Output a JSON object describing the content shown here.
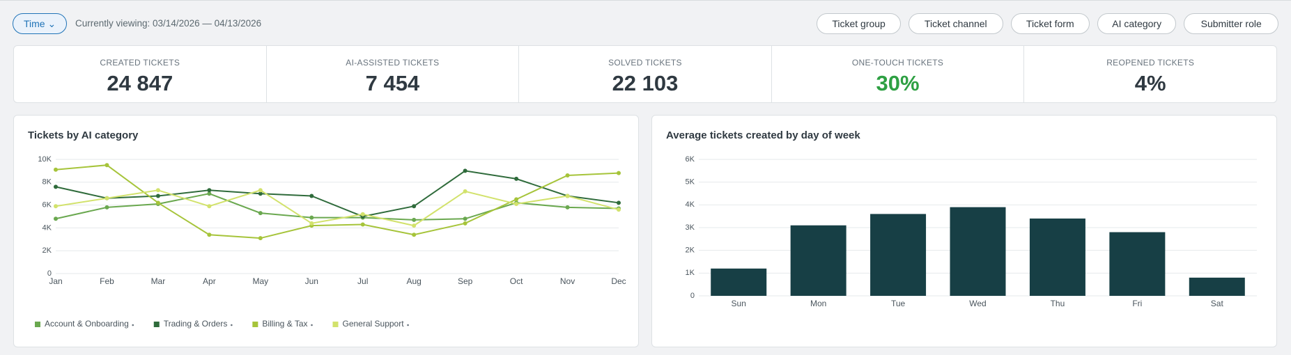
{
  "header": {
    "time_button": "Time",
    "viewing": "Currently viewing: 03/14/2026 — 04/13/2026",
    "filters": [
      "Ticket group",
      "Ticket channel",
      "Ticket form",
      "AI category",
      "Submitter role"
    ]
  },
  "kpis": [
    {
      "label": "CREATED TICKETS",
      "value": "24 847"
    },
    {
      "label": "AI-ASSISTED TICKETS",
      "value": "7 454"
    },
    {
      "label": "SOLVED TICKETS",
      "value": "22 103"
    },
    {
      "label": "ONE-TOUCH TICKETS",
      "value": "30%",
      "color": "#2ea043"
    },
    {
      "label": "REOPENED TICKETS",
      "value": "4%"
    }
  ],
  "chart_data": [
    {
      "type": "line",
      "title": "Tickets by AI category",
      "categories": [
        "Jan",
        "Feb",
        "Mar",
        "Apr",
        "May",
        "Jun",
        "Jul",
        "Aug",
        "Sep",
        "Oct",
        "Nov",
        "Dec"
      ],
      "series": [
        {
          "name": "Account & Onboarding",
          "color": "#6aa84f",
          "values": [
            4800,
            5800,
            6100,
            7000,
            5300,
            4900,
            4900,
            4700,
            4800,
            6200,
            5800,
            5700
          ]
        },
        {
          "name": "Trading & Orders",
          "color": "#2f6b3b",
          "values": [
            7600,
            6600,
            6800,
            7300,
            7000,
            6800,
            5000,
            5900,
            9000,
            8300,
            6800,
            6200
          ]
        },
        {
          "name": "Billing & Tax",
          "color": "#a6c43a",
          "values": [
            9100,
            9500,
            6200,
            3400,
            3100,
            4200,
            4300,
            3400,
            4400,
            6500,
            8600,
            8800
          ]
        },
        {
          "name": "General Support",
          "color": "#d2e26c",
          "values": [
            5900,
            6600,
            7300,
            5900,
            7300,
            4400,
            5200,
            4200,
            7200,
            6100,
            6800,
            5600
          ]
        }
      ],
      "ylim": [
        0,
        10000
      ],
      "yticks": [
        0,
        {
          "value": 2000,
          "label": "2K"
        },
        {
          "value": 4000,
          "label": "4K"
        },
        {
          "value": 6000,
          "label": "6K"
        },
        {
          "value": 8000,
          "label": "8K"
        },
        {
          "value": 10000,
          "label": "10K"
        }
      ],
      "grid": true
    },
    {
      "type": "bar",
      "title": "Average tickets created by day of week",
      "categories": [
        "Sun",
        "Mon",
        "Tue",
        "Wed",
        "Thu",
        "Fri",
        "Sat"
      ],
      "values": [
        1200,
        3100,
        3600,
        3900,
        3400,
        2800,
        800
      ],
      "color": "#173f45",
      "ylim": [
        0,
        6000
      ],
      "yticks": [
        0,
        {
          "value": 1000,
          "label": "1K"
        },
        {
          "value": 2000,
          "label": "2K"
        },
        {
          "value": 3000,
          "label": "3K"
        },
        {
          "value": 4000,
          "label": "4K"
        },
        {
          "value": 5000,
          "label": "5K"
        },
        {
          "value": 6000,
          "label": "6K"
        }
      ],
      "grid": true
    }
  ]
}
